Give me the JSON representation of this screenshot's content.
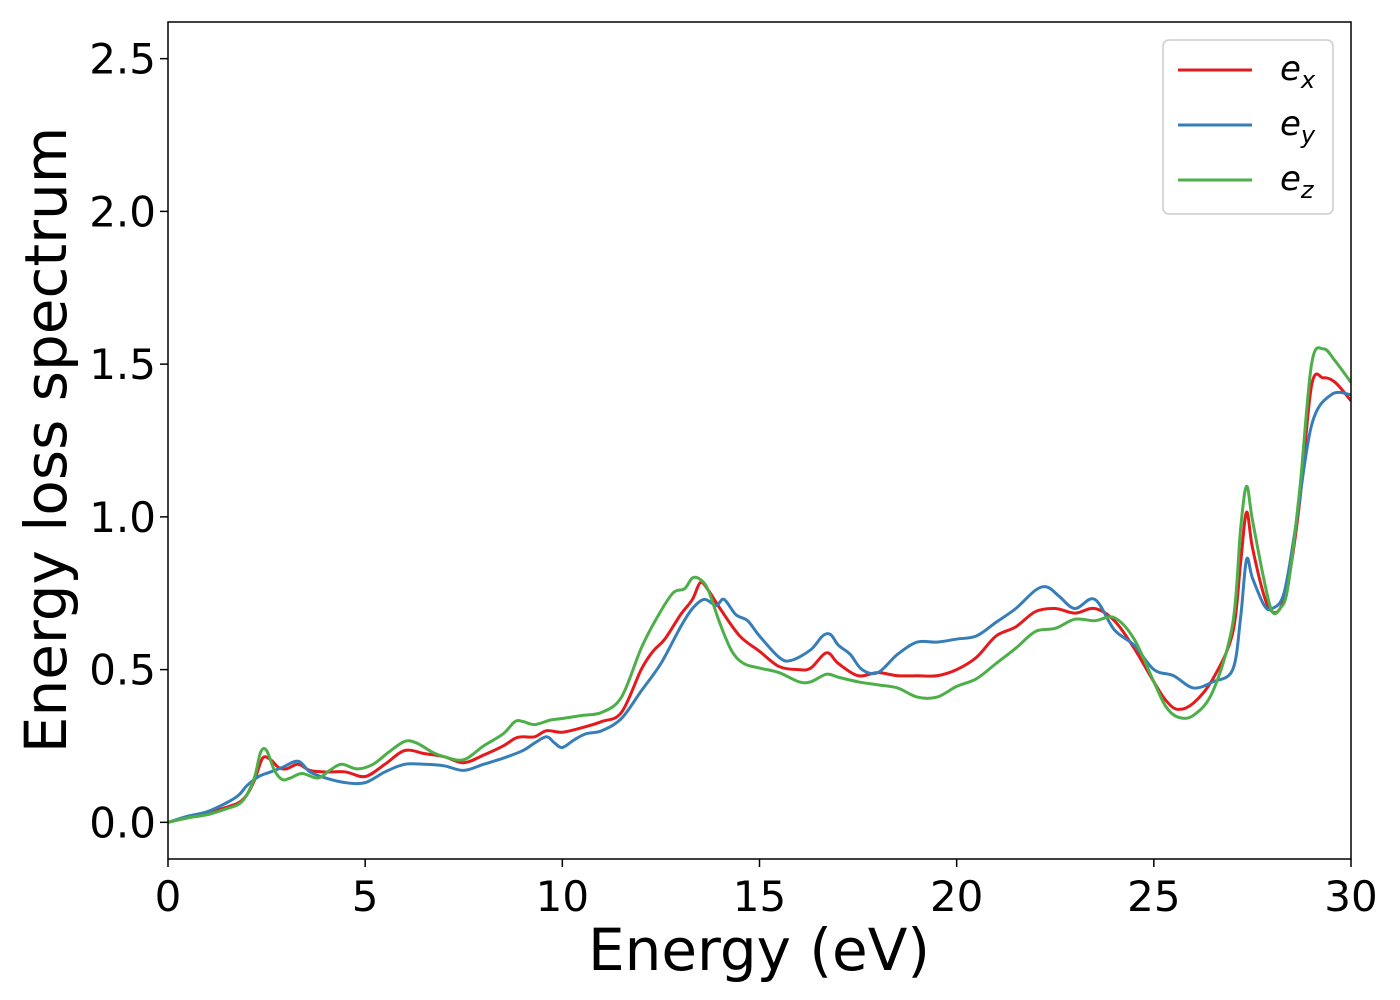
{
  "chart_data": {
    "type": "line",
    "xlabel": "Energy (eV)",
    "ylabel": "Energy loss spectrum",
    "xlim": [
      0,
      30
    ],
    "ylim": [
      -0.12,
      2.62
    ],
    "xticks": [
      0,
      5,
      10,
      15,
      20,
      25,
      30
    ],
    "xtick_labels": [
      "0",
      "5",
      "10",
      "15",
      "20",
      "25",
      "30"
    ],
    "yticks": [
      0.0,
      0.5,
      1.0,
      1.5,
      2.0,
      2.5
    ],
    "ytick_labels": [
      "0.0",
      "0.5",
      "1.0",
      "1.5",
      "2.0",
      "2.5"
    ],
    "grid": false,
    "legend_position": "top-right",
    "series": [
      {
        "name": "e",
        "subscript": "x",
        "color": "#e41a1c",
        "x": [
          0,
          0.5,
          1,
          1.5,
          1.8,
          2.0,
          2.2,
          2.4,
          2.6,
          2.8,
          3.0,
          3.3,
          3.6,
          4.0,
          4.5,
          5.0,
          5.5,
          6.0,
          6.5,
          7.0,
          7.5,
          8.0,
          8.5,
          8.8,
          9.0,
          9.3,
          9.6,
          10.0,
          10.5,
          11.0,
          11.5,
          12.0,
          12.3,
          12.6,
          13.0,
          13.3,
          13.5,
          13.7,
          14.0,
          14.5,
          15.0,
          15.5,
          16.0,
          16.3,
          16.7,
          17.0,
          17.5,
          18.0,
          18.5,
          19.0,
          19.5,
          20.0,
          20.5,
          21.0,
          21.5,
          22.0,
          22.5,
          23.0,
          23.5,
          24.0,
          24.5,
          25.0,
          25.3,
          25.6,
          26.0,
          26.5,
          27.0,
          27.2,
          27.35,
          27.5,
          27.8,
          28.0,
          28.2,
          28.4,
          28.7,
          29.0,
          29.3,
          29.6,
          30.0
        ],
        "values": [
          0,
          0.015,
          0.03,
          0.05,
          0.065,
          0.09,
          0.14,
          0.21,
          0.205,
          0.18,
          0.175,
          0.19,
          0.17,
          0.165,
          0.165,
          0.15,
          0.19,
          0.235,
          0.225,
          0.215,
          0.195,
          0.22,
          0.25,
          0.275,
          0.28,
          0.28,
          0.3,
          0.295,
          0.31,
          0.33,
          0.36,
          0.5,
          0.56,
          0.6,
          0.68,
          0.73,
          0.785,
          0.76,
          0.7,
          0.61,
          0.56,
          0.51,
          0.5,
          0.505,
          0.555,
          0.52,
          0.48,
          0.49,
          0.48,
          0.48,
          0.48,
          0.5,
          0.54,
          0.61,
          0.64,
          0.69,
          0.7,
          0.685,
          0.7,
          0.66,
          0.57,
          0.46,
          0.4,
          0.37,
          0.39,
          0.47,
          0.62,
          0.85,
          1.015,
          0.9,
          0.74,
          0.69,
          0.7,
          0.78,
          1.05,
          1.43,
          1.455,
          1.44,
          1.38
        ]
      },
      {
        "name": "e",
        "subscript": "y",
        "color": "#377eb8",
        "x": [
          0,
          0.5,
          1,
          1.5,
          1.8,
          2.0,
          2.3,
          2.6,
          2.9,
          3.3,
          3.6,
          4.0,
          4.5,
          5.0,
          5.5,
          6.0,
          6.5,
          7.0,
          7.5,
          8.0,
          8.5,
          9.0,
          9.3,
          9.6,
          9.8,
          10.0,
          10.3,
          10.6,
          11.0,
          11.5,
          12.0,
          12.5,
          13.0,
          13.3,
          13.6,
          13.9,
          14.1,
          14.4,
          14.7,
          15.0,
          15.5,
          15.8,
          16.3,
          16.6,
          16.8,
          17.0,
          17.3,
          17.6,
          18.0,
          18.5,
          19.0,
          19.5,
          20.0,
          20.5,
          21.0,
          21.5,
          22.0,
          22.3,
          22.6,
          23.0,
          23.5,
          24.0,
          24.5,
          25.0,
          25.5,
          26.0,
          26.5,
          27.0,
          27.2,
          27.35,
          27.5,
          27.8,
          28.0,
          28.3,
          28.6,
          29.0,
          29.5,
          30.0
        ],
        "values": [
          0,
          0.02,
          0.035,
          0.065,
          0.09,
          0.12,
          0.15,
          0.165,
          0.18,
          0.2,
          0.165,
          0.145,
          0.13,
          0.13,
          0.165,
          0.19,
          0.19,
          0.185,
          0.17,
          0.19,
          0.21,
          0.235,
          0.26,
          0.28,
          0.26,
          0.245,
          0.27,
          0.29,
          0.3,
          0.34,
          0.43,
          0.52,
          0.64,
          0.7,
          0.73,
          0.71,
          0.73,
          0.68,
          0.66,
          0.61,
          0.54,
          0.53,
          0.565,
          0.61,
          0.615,
          0.58,
          0.55,
          0.5,
          0.49,
          0.55,
          0.59,
          0.59,
          0.6,
          0.61,
          0.655,
          0.7,
          0.76,
          0.77,
          0.74,
          0.7,
          0.73,
          0.63,
          0.58,
          0.5,
          0.48,
          0.44,
          0.46,
          0.5,
          0.67,
          0.86,
          0.8,
          0.71,
          0.7,
          0.75,
          0.97,
          1.3,
          1.4,
          1.4
        ]
      },
      {
        "name": "e",
        "subscript": "z",
        "color": "#4daf4a",
        "x": [
          0,
          0.5,
          1,
          1.5,
          1.8,
          2.0,
          2.2,
          2.35,
          2.5,
          2.7,
          2.9,
          3.1,
          3.4,
          3.8,
          4.1,
          4.4,
          4.8,
          5.2,
          5.6,
          6.0,
          6.3,
          6.7,
          7.0,
          7.5,
          8.0,
          8.5,
          8.8,
          9.0,
          9.3,
          9.7,
          10.0,
          10.5,
          11.0,
          11.5,
          12.0,
          12.4,
          12.8,
          13.1,
          13.3,
          13.5,
          13.7,
          14.0,
          14.3,
          14.6,
          15.0,
          15.5,
          16.0,
          16.3,
          16.7,
          17.0,
          17.5,
          18.0,
          18.5,
          19.0,
          19.5,
          20.0,
          20.5,
          21.0,
          21.5,
          22.0,
          22.5,
          23.0,
          23.5,
          24.0,
          24.5,
          25.0,
          25.3,
          25.6,
          26.0,
          26.5,
          27.0,
          27.2,
          27.35,
          27.5,
          27.8,
          28.0,
          28.2,
          28.4,
          28.7,
          29.0,
          29.3,
          29.6,
          30.0
        ],
        "values": [
          0,
          0.015,
          0.025,
          0.045,
          0.06,
          0.09,
          0.15,
          0.23,
          0.235,
          0.17,
          0.14,
          0.145,
          0.16,
          0.145,
          0.17,
          0.19,
          0.175,
          0.19,
          0.23,
          0.265,
          0.26,
          0.23,
          0.215,
          0.205,
          0.25,
          0.29,
          0.33,
          0.33,
          0.32,
          0.335,
          0.34,
          0.35,
          0.36,
          0.41,
          0.57,
          0.67,
          0.75,
          0.765,
          0.8,
          0.795,
          0.76,
          0.65,
          0.56,
          0.52,
          0.505,
          0.49,
          0.46,
          0.46,
          0.485,
          0.475,
          0.46,
          0.45,
          0.44,
          0.41,
          0.41,
          0.445,
          0.47,
          0.52,
          0.57,
          0.625,
          0.635,
          0.665,
          0.66,
          0.67,
          0.6,
          0.46,
          0.38,
          0.345,
          0.35,
          0.43,
          0.65,
          0.96,
          1.1,
          0.99,
          0.79,
          0.69,
          0.7,
          0.77,
          1.09,
          1.5,
          1.55,
          1.51,
          1.44
        ]
      }
    ]
  }
}
